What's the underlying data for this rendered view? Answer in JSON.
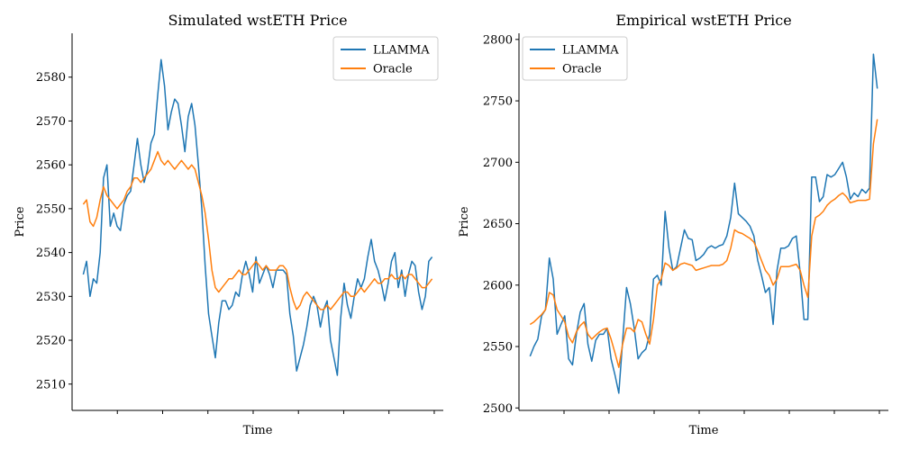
{
  "chart_data": [
    {
      "type": "line",
      "title": "Simulated wstETH Price",
      "xlabel": "Time",
      "ylabel": "Price",
      "ylim": [
        2504,
        2590
      ],
      "yticks": [
        2510,
        2520,
        2530,
        2540,
        2550,
        2560,
        2570,
        2580
      ],
      "x_tick_count": 8,
      "x_tick_labels_visible": false,
      "legend": "top-right",
      "grid": false,
      "series": [
        {
          "name": "LLAMMA",
          "color": "#1f77b4",
          "values": [
            2535,
            2538,
            2530,
            2534,
            2533,
            2540,
            2557,
            2560,
            2546,
            2549,
            2546,
            2545,
            2551,
            2553,
            2554,
            2560,
            2566,
            2560,
            2556,
            2559,
            2565,
            2567,
            2576,
            2584,
            2578,
            2568,
            2572,
            2575,
            2574,
            2569,
            2563,
            2571,
            2574,
            2569,
            2560,
            2550,
            2537,
            2526,
            2521,
            2516,
            2524,
            2529,
            2529,
            2527,
            2528,
            2531,
            2530,
            2535,
            2538,
            2535,
            2531,
            2539,
            2533,
            2535,
            2537,
            2535,
            2532,
            2536,
            2536,
            2536,
            2535,
            2526,
            2521,
            2513,
            2516,
            2519,
            2523,
            2528,
            2530,
            2528,
            2523,
            2527,
            2529,
            2520,
            2516,
            2512,
            2525,
            2533,
            2528,
            2525,
            2530,
            2534,
            2532,
            2534,
            2539,
            2543,
            2538,
            2536,
            2533,
            2529,
            2533,
            2538,
            2540,
            2532,
            2536,
            2530,
            2535,
            2538,
            2537,
            2531,
            2527,
            2530,
            2538,
            2539
          ]
        },
        {
          "name": "Oracle",
          "color": "#ff7f0e",
          "values": [
            2551,
            2552,
            2547,
            2546,
            2548,
            2552,
            2555,
            2553,
            2552,
            2551,
            2550,
            2551,
            2552,
            2554,
            2555,
            2557,
            2557,
            2556,
            2557,
            2558,
            2559,
            2561,
            2563,
            2561,
            2560,
            2561,
            2560,
            2559,
            2560,
            2561,
            2560,
            2559,
            2560,
            2559,
            2556,
            2553,
            2549,
            2543,
            2536,
            2532,
            2531,
            2532,
            2533,
            2534,
            2534,
            2535,
            2536,
            2535,
            2535,
            2536,
            2537,
            2538,
            2537,
            2536,
            2537,
            2536,
            2536,
            2536,
            2537,
            2537,
            2536,
            2532,
            2529,
            2527,
            2528,
            2530,
            2531,
            2530,
            2529,
            2528,
            2527,
            2527,
            2528,
            2527,
            2528,
            2529,
            2530,
            2531,
            2531,
            2530,
            2530,
            2531,
            2532,
            2531,
            2532,
            2533,
            2534,
            2533,
            2533,
            2534,
            2534,
            2535,
            2534,
            2534,
            2535,
            2534,
            2535,
            2535,
            2534,
            2533,
            2532,
            2532,
            2533,
            2534
          ]
        }
      ]
    },
    {
      "type": "line",
      "title": "Empirical wstETH Price",
      "xlabel": "Time",
      "ylabel": "Price",
      "ylim": [
        2498,
        2805
      ],
      "yticks": [
        2500,
        2550,
        2600,
        2650,
        2700,
        2750,
        2800
      ],
      "x_tick_count": 8,
      "x_tick_labels_visible": false,
      "legend": "top-left",
      "grid": false,
      "series": [
        {
          "name": "LLAMMA",
          "color": "#1f77b4",
          "values": [
            2542,
            2550,
            2556,
            2575,
            2580,
            2622,
            2605,
            2560,
            2568,
            2575,
            2540,
            2535,
            2560,
            2578,
            2585,
            2552,
            2538,
            2555,
            2560,
            2560,
            2565,
            2540,
            2527,
            2512,
            2555,
            2598,
            2585,
            2565,
            2540,
            2545,
            2548,
            2560,
            2605,
            2608,
            2600,
            2660,
            2630,
            2612,
            2615,
            2630,
            2645,
            2638,
            2637,
            2620,
            2622,
            2625,
            2630,
            2632,
            2630,
            2632,
            2633,
            2640,
            2655,
            2683,
            2658,
            2655,
            2652,
            2648,
            2640,
            2620,
            2608,
            2594,
            2598,
            2568,
            2612,
            2630,
            2630,
            2632,
            2638,
            2640,
            2610,
            2572,
            2572,
            2688,
            2688,
            2668,
            2672,
            2690,
            2688,
            2690,
            2695,
            2700,
            2688,
            2670,
            2675,
            2672,
            2678,
            2675,
            2679,
            2788,
            2760
          ]
        },
        {
          "name": "Oracle",
          "color": "#ff7f0e",
          "values": [
            2568,
            2570,
            2573,
            2576,
            2580,
            2594,
            2592,
            2580,
            2575,
            2570,
            2558,
            2553,
            2562,
            2567,
            2570,
            2560,
            2556,
            2559,
            2562,
            2564,
            2565,
            2556,
            2545,
            2533,
            2552,
            2565,
            2565,
            2562,
            2572,
            2570,
            2560,
            2552,
            2572,
            2600,
            2605,
            2618,
            2616,
            2612,
            2614,
            2617,
            2618,
            2617,
            2616,
            2612,
            2613,
            2614,
            2615,
            2616,
            2616,
            2616,
            2617,
            2620,
            2630,
            2645,
            2643,
            2642,
            2640,
            2638,
            2635,
            2628,
            2620,
            2612,
            2608,
            2600,
            2605,
            2615,
            2615,
            2615,
            2616,
            2617,
            2612,
            2600,
            2590,
            2640,
            2655,
            2657,
            2660,
            2665,
            2668,
            2670,
            2673,
            2675,
            2672,
            2667,
            2668,
            2669,
            2669,
            2669,
            2670,
            2715,
            2735
          ]
        }
      ]
    }
  ]
}
